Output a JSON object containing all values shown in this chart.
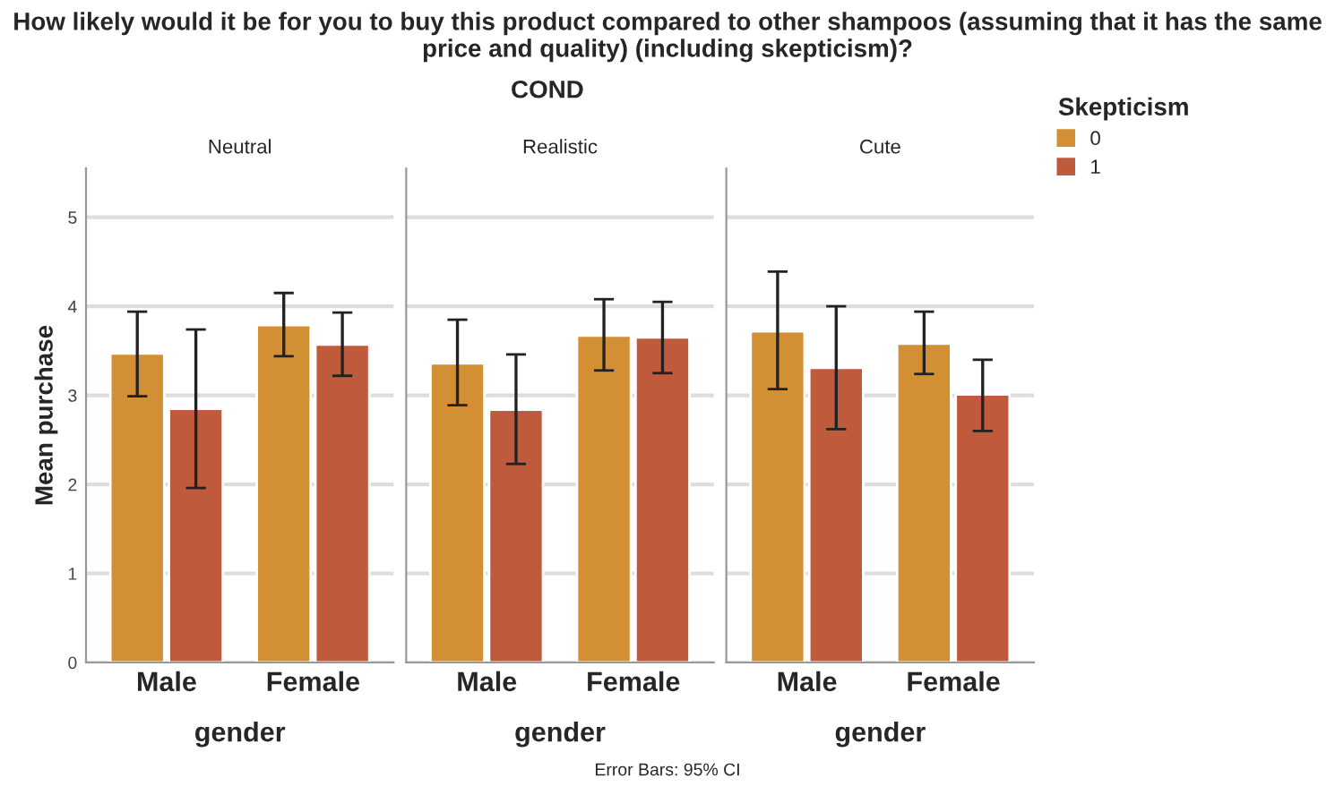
{
  "chart_data": [
    {
      "type": "bar",
      "title": "Neutral",
      "xlabel": "gender",
      "ylabel": "Mean purchase",
      "categories": [
        "Male",
        "Female"
      ],
      "annotations": [
        "How likely would it be for you to buy this product compared to other shampoos (assuming that it has the same price and quality) (including skepticism)?",
        "COND",
        "Error Bars: 95% CI"
      ],
      "series": [
        {
          "color": "#d38f33",
          "values": [
            3.47,
            3.79
          ],
          "errors": [
            [
              2.99,
              3.94
            ],
            [
              3.44,
              4.15
            ]
          ]
        },
        {
          "color": "#c05a3c",
          "values": [
            2.85,
            3.57
          ],
          "errors": [
            [
              1.96,
              3.74
            ],
            [
              3.22,
              3.93
            ]
          ]
        }
      ],
      "ylim": [
        0,
        5.55
      ],
      "yticks": [
        0,
        1,
        2,
        3,
        4,
        5
      ],
      "grid": "y",
      "legend": false
    },
    {
      "type": "bar",
      "title": "Realistic",
      "xlabel": "gender",
      "categories": [
        "Male",
        "Female"
      ],
      "series": [
        {
          "color": "#d38f33",
          "values": [
            3.36,
            3.67
          ],
          "errors": [
            [
              2.89,
              3.85
            ],
            [
              3.28,
              4.08
            ]
          ]
        },
        {
          "color": "#c05a3c",
          "values": [
            2.84,
            3.65
          ],
          "errors": [
            [
              2.23,
              3.46
            ],
            [
              3.25,
              4.05
            ]
          ]
        }
      ],
      "ylim": [
        0,
        5.55
      ],
      "yticks": [
        0,
        1,
        2,
        3,
        4,
        5
      ],
      "grid": "y",
      "legend": false,
      "tick_labels": "x"
    },
    {
      "type": "bar",
      "title": "Cute",
      "xlabel": "gender",
      "categories": [
        "Male",
        "Female"
      ],
      "legend_title": "Skepticism",
      "series": [
        {
          "name": "0",
          "color": "#d38f33",
          "values": [
            3.72,
            3.58
          ],
          "errors": [
            [
              3.07,
              4.39
            ],
            [
              3.24,
              3.94
            ]
          ]
        },
        {
          "name": "1",
          "color": "#c05a3c",
          "values": [
            3.31,
            3.01
          ],
          "errors": [
            [
              2.62,
              4.0
            ],
            [
              2.6,
              3.4
            ]
          ]
        }
      ],
      "ylim": [
        0,
        5.55
      ],
      "yticks": [
        0,
        1,
        2,
        3,
        4,
        5
      ],
      "grid": "y",
      "legend": "top right",
      "tick_labels": "x"
    }
  ]
}
